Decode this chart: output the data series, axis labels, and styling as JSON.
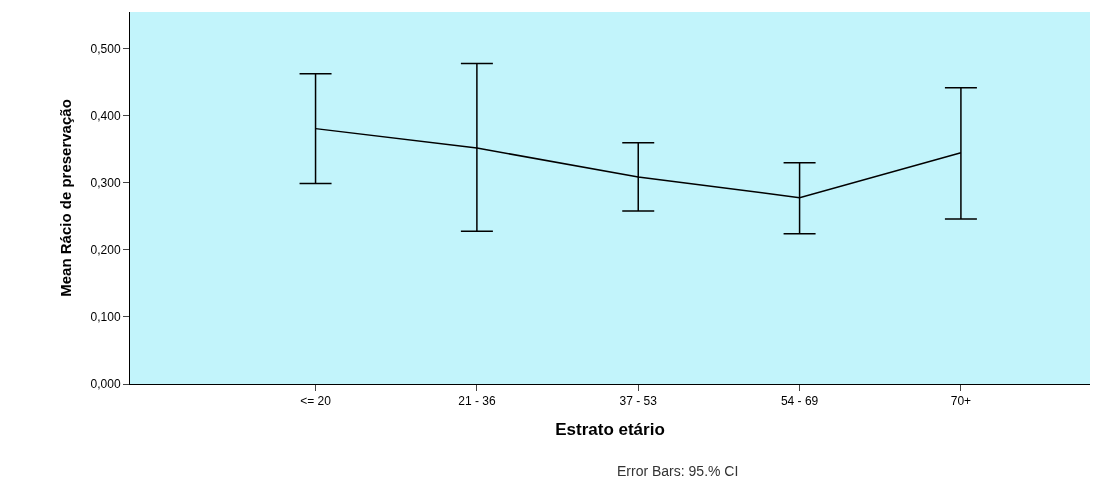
{
  "chart_data": {
    "type": "line",
    "xlabel": "Estrato etário",
    "ylabel": "Mean Rácio de preservação",
    "categories": [
      "<= 20",
      "21 - 36",
      "37 - 53",
      "54 - 69",
      "70+"
    ],
    "series": [
      {
        "color": "#000000",
        "values": [
          0.381,
          0.352,
          0.309,
          0.278,
          0.345
        ],
        "errors": [
          [
            0.299,
            0.463
          ],
          [
            0.228,
            0.478
          ],
          [
            0.258,
            0.36
          ],
          [
            0.224,
            0.33
          ],
          [
            0.246,
            0.442
          ]
        ]
      }
    ],
    "ylim": [
      0,
      0.555
    ],
    "yticks": [
      {
        "value": 0,
        "label": "0,000"
      },
      {
        "value": 0.1,
        "label": "0,100"
      },
      {
        "value": 0.2,
        "label": "0,200"
      },
      {
        "value": 0.3,
        "label": "0,300"
      },
      {
        "value": 0.4,
        "label": "0,400"
      },
      {
        "value": 0.5,
        "label": "0,500"
      }
    ],
    "grid": false,
    "legend": false,
    "marker": "none",
    "line_style": "solid",
    "annotations": [
      "Error Bars: 95.% CI"
    ]
  }
}
